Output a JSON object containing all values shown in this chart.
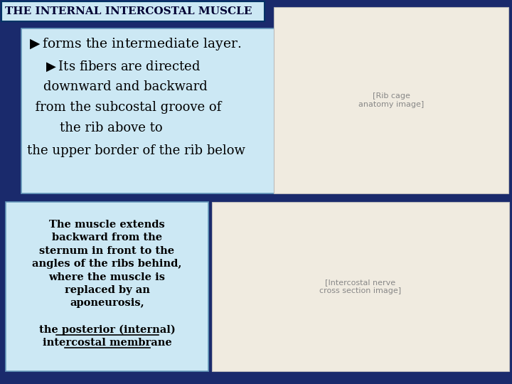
{
  "title": "THE INTERNAL INTERCOSTAL MUSCLE",
  "title_bg": "#cce8f4",
  "title_color": "#000033",
  "slide_bg": "#1a2a6c",
  "box1_bg": "#cce8f4",
  "box2_bg": "#cce8f4",
  "box2_text_normal": "The muscle extends\nbackward from the\nsternum in front to the\nangles of the ribs behind,\nwhere the muscle is\nreplaced by an\naponeurosis,",
  "box2_text_bold_underline": "the posterior (internal)\nintercostal membrane",
  "figsize": [
    7.2,
    5.4
  ],
  "dpi": 100
}
